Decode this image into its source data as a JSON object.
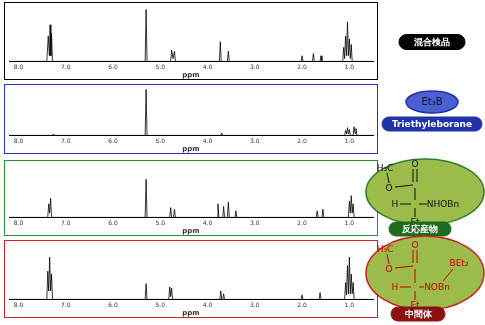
{
  "chart_data": [
    {
      "type": "line",
      "x_label": "ppm",
      "xlim": [
        8.2,
        0.5
      ],
      "xticks": [
        {
          "value": 8,
          "label": "8.0"
        },
        {
          "value": 7,
          "label": "7.0"
        },
        {
          "value": 6,
          "label": "6.0"
        },
        {
          "value": 5,
          "label": "5.0"
        },
        {
          "value": 4,
          "label": "4.0"
        },
        {
          "value": 3,
          "label": "3.0"
        },
        {
          "value": 2,
          "label": "2.0"
        },
        {
          "value": 1,
          "label": "1.0"
        }
      ],
      "ylim": [
        0,
        100
      ],
      "tick_labels": "x",
      "grid": false,
      "color": "#000000",
      "x": [
        8.2,
        7.4,
        7.37,
        7.345,
        7.33,
        7.315,
        7.3,
        7.28,
        5.32,
        5.3,
        5.28,
        4.78,
        4.76,
        4.73,
        4.7,
        4.68,
        3.75,
        3.73,
        3.71,
        3.58,
        3.56,
        3.54,
        2.02,
        2.0,
        1.98,
        1.78,
        1.76,
        1.74,
        1.62,
        1.6,
        1.58,
        1.14,
        1.12,
        1.1,
        1.08,
        1.06,
        1.04,
        1.02,
        1.0,
        0.98,
        0.96,
        0.94,
        0.5
      ],
      "values": [
        0,
        0,
        45,
        10,
        65,
        10,
        50,
        0,
        0,
        92,
        0,
        0,
        20,
        5,
        18,
        0,
        0,
        35,
        0,
        0,
        18,
        0,
        0,
        10,
        0,
        0,
        14,
        0,
        0,
        10,
        0,
        0,
        25,
        5,
        45,
        10,
        70,
        10,
        40,
        5,
        30,
        0,
        0
      ],
      "annotations": {
        "label": "混合検品"
      }
    },
    {
      "type": "line",
      "x_label": "ppm",
      "xlim": [
        8.2,
        0.5
      ],
      "xticks": [
        {
          "value": 8,
          "label": "8.0"
        },
        {
          "value": 7,
          "label": "7.0"
        },
        {
          "value": 6,
          "label": "6.0"
        },
        {
          "value": 5,
          "label": "5.0"
        },
        {
          "value": 4,
          "label": "4.0"
        },
        {
          "value": 3,
          "label": "3.0"
        },
        {
          "value": 2,
          "label": "2.0"
        },
        {
          "value": 1,
          "label": "1.0"
        }
      ],
      "ylim": [
        0,
        100
      ],
      "tick_labels": "x",
      "grid": false,
      "color": "#000000",
      "x": [
        8.2,
        7.28,
        7.26,
        7.24,
        5.32,
        5.3,
        5.28,
        3.72,
        3.7,
        3.68,
        1.1,
        1.08,
        1.06,
        1.04,
        1.02,
        1.0,
        0.98,
        0.92,
        0.9,
        0.88,
        0.86,
        0.84,
        0.5
      ],
      "values": [
        0,
        0,
        3,
        0,
        0,
        95,
        0,
        0,
        5,
        0,
        0,
        10,
        3,
        16,
        3,
        12,
        0,
        0,
        18,
        4,
        14,
        0,
        0
      ],
      "annotations": {
        "molecule": [
          "Et₃B"
        ],
        "label": "Triethyleborane"
      }
    },
    {
      "type": "line",
      "x_label": "ppm",
      "xlim": [
        8.2,
        0.5
      ],
      "xticks": [
        {
          "value": 8,
          "label": "8.0"
        },
        {
          "value": 7,
          "label": "7.0"
        },
        {
          "value": 6,
          "label": "6.0"
        },
        {
          "value": 5,
          "label": "5.0"
        },
        {
          "value": 4,
          "label": "4.0"
        },
        {
          "value": 3,
          "label": "3.0"
        },
        {
          "value": 2,
          "label": "2.0"
        },
        {
          "value": 1,
          "label": "1.0"
        }
      ],
      "ylim": [
        0,
        100
      ],
      "tick_labels": "x",
      "grid": false,
      "color": "#000000",
      "x": [
        8.2,
        7.38,
        7.36,
        7.34,
        7.32,
        7.3,
        5.32,
        5.3,
        5.28,
        4.8,
        4.78,
        4.76,
        4.72,
        4.7,
        4.68,
        3.8,
        3.78,
        3.76,
        3.68,
        3.66,
        3.64,
        3.58,
        3.56,
        3.54,
        3.42,
        3.4,
        3.38,
        1.7,
        1.68,
        1.66,
        1.58,
        1.56,
        1.54,
        1.02,
        1.0,
        0.98,
        0.96,
        0.94,
        0.92,
        0.9,
        0.5
      ],
      "values": [
        0,
        0,
        25,
        8,
        35,
        0,
        0,
        70,
        0,
        0,
        18,
        0,
        0,
        15,
        0,
        0,
        25,
        0,
        0,
        20,
        0,
        0,
        28,
        0,
        0,
        12,
        0,
        0,
        12,
        0,
        0,
        15,
        0,
        0,
        30,
        8,
        40,
        8,
        25,
        0,
        0
      ],
      "annotations": {
        "molecule": [
          "H₃C",
          "O",
          "O",
          "H",
          "NHOBn",
          "Et"
        ],
        "label": "反応産物"
      }
    },
    {
      "type": "line",
      "x_label": "ppm",
      "xlim": [
        8.2,
        0.5
      ],
      "xticks": [
        {
          "value": 8,
          "label": "8.0"
        },
        {
          "value": 7,
          "label": "7.0"
        },
        {
          "value": 6,
          "label": "6.0"
        },
        {
          "value": 5,
          "label": "5.0"
        },
        {
          "value": 4,
          "label": "4.0"
        },
        {
          "value": 3,
          "label": "3.0"
        },
        {
          "value": 2,
          "label": "2.0"
        },
        {
          "value": 1,
          "label": "1.0"
        }
      ],
      "ylim": [
        0,
        100
      ],
      "tick_labels": "x",
      "grid": false,
      "color": "#000000",
      "x": [
        8.2,
        7.4,
        7.38,
        7.36,
        7.34,
        7.32,
        7.3,
        7.28,
        5.32,
        5.3,
        5.28,
        4.82,
        4.8,
        4.78,
        4.76,
        4.74,
        3.74,
        3.72,
        3.7,
        3.68,
        3.66,
        3.64,
        2.02,
        2.0,
        1.98,
        1.64,
        1.62,
        1.6,
        1.1,
        1.08,
        1.06,
        1.04,
        1.02,
        1.0,
        0.98,
        0.96,
        0.94,
        0.92,
        0.9,
        0.5
      ],
      "values": [
        0,
        0,
        50,
        15,
        75,
        15,
        45,
        0,
        0,
        28,
        0,
        0,
        22,
        5,
        20,
        0,
        0,
        15,
        0,
        0,
        10,
        0,
        0,
        8,
        0,
        0,
        12,
        0,
        0,
        30,
        8,
        60,
        10,
        75,
        10,
        45,
        10,
        30,
        0,
        0
      ],
      "annotations": {
        "molecule": [
          "H₃C",
          "O",
          "O",
          "BEt₂",
          "H",
          "NOBn",
          "Et"
        ],
        "label": "中間体"
      }
    }
  ]
}
